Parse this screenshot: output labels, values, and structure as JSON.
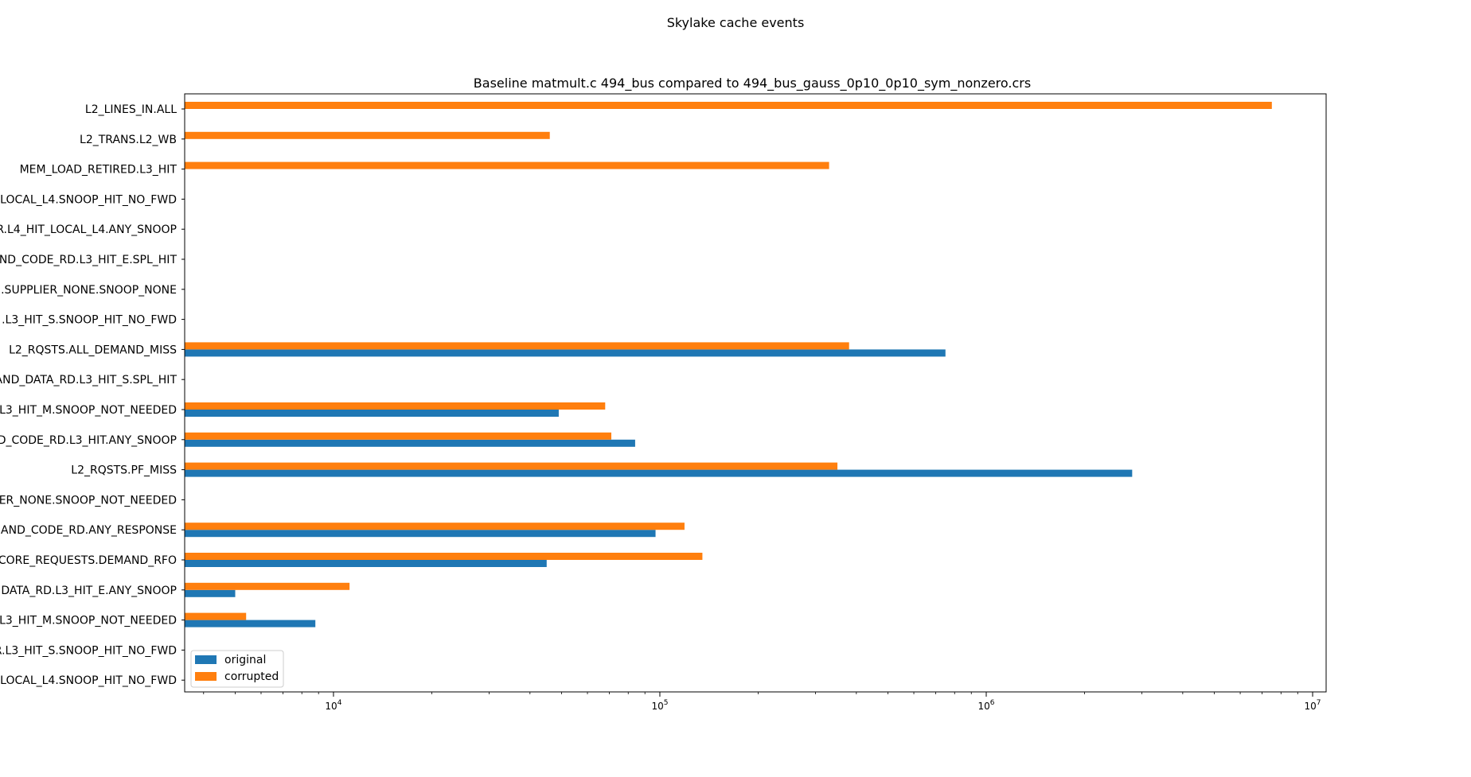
{
  "figure": {
    "suptitle": "Skylake cache events"
  },
  "chart_data": {
    "type": "bar",
    "orientation": "horizontal",
    "title": "Baseline matmult.c 494_bus compared to 494_bus_gauss_0p10_0p10_sym_nonzero.crs",
    "xlabel": "",
    "ylabel": "",
    "xscale": "log",
    "xlim": [
      3500,
      11000000
    ],
    "xticks": [
      {
        "base": "10",
        "exp": "4",
        "value": 10000
      },
      {
        "base": "10",
        "exp": "5",
        "value": 100000
      },
      {
        "base": "10",
        "exp": "6",
        "value": 1000000
      },
      {
        "base": "10",
        "exp": "7",
        "value": 10000000
      }
    ],
    "categories": [
      "L2_LINES_IN.ALL",
      "L2_TRANS.L2_WB",
      "MEM_LOAD_RETIRED.L3_HIT",
      "LOCAL_L4.SNOOP_HIT_NO_FWD",
      "R.L4_HIT_LOCAL_L4.ANY_SNOOP",
      "ND_CODE_RD.L3_HIT_E.SPL_HIT",
      ".SUPPLIER_NONE.SNOOP_NONE",
      ".L3_HIT_S.SNOOP_HIT_NO_FWD",
      "L2_RQSTS.ALL_DEMAND_MISS",
      "AND_DATA_RD.L3_HIT_S.SPL_HIT",
      "L3_HIT_M.SNOOP_NOT_NEEDED",
      "D_CODE_RD.L3_HIT.ANY_SNOOP",
      "L2_RQSTS.PF_MISS",
      "ER_NONE.SNOOP_NOT_NEEDED",
      "MAND_CODE_RD.ANY_RESPONSE",
      "CORE_REQUESTS.DEMAND_RFO",
      "DATA_RD.L3_HIT_E.ANY_SNOOP",
      "L3_HIT_M.SNOOP_NOT_NEEDED",
      "R.L3_HIT_S.SNOOP_HIT_NO_FWD",
      "LOCAL_L4.SNOOP_HIT_NO_FWD"
    ],
    "series": [
      {
        "name": "original",
        "color": "#1f77b4",
        "values": [
          0,
          0,
          0,
          0,
          0,
          0,
          0,
          0,
          750000,
          0,
          49000,
          84000,
          2800000,
          0,
          97000,
          45000,
          5000,
          8800,
          0,
          0
        ]
      },
      {
        "name": "corrupted",
        "color": "#ff7f0e",
        "values": [
          7500000,
          46000,
          330000,
          0,
          0,
          0,
          0,
          0,
          380000,
          0,
          68000,
          71000,
          350000,
          0,
          119000,
          135000,
          11200,
          5400,
          0,
          0
        ]
      }
    ],
    "grid": false,
    "legend": "lower left"
  }
}
